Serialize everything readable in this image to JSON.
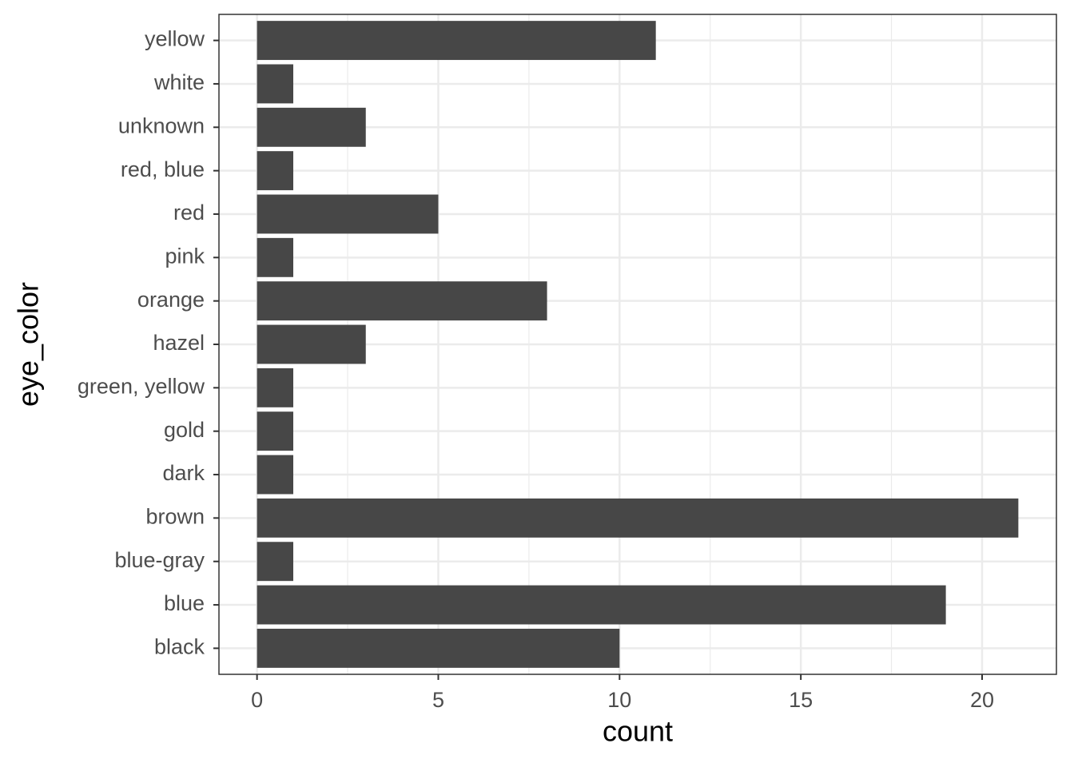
{
  "chart_data": {
    "type": "bar",
    "orientation": "horizontal",
    "x_label": "count",
    "y_label": "eye_color",
    "categories": [
      "black",
      "blue",
      "blue-gray",
      "brown",
      "dark",
      "gold",
      "green, yellow",
      "hazel",
      "orange",
      "pink",
      "red",
      "red, blue",
      "unknown",
      "white",
      "yellow"
    ],
    "values": [
      10,
      19,
      1,
      21,
      1,
      1,
      1,
      3,
      8,
      1,
      5,
      1,
      3,
      1,
      11
    ],
    "color": "#474747",
    "xlim": [
      -1.05,
      22.05
    ],
    "xticks": [
      0,
      5,
      10,
      15,
      20
    ],
    "x_minor_grid": [
      2.5,
      7.5,
      12.5,
      17.5
    ],
    "grid": true
  }
}
